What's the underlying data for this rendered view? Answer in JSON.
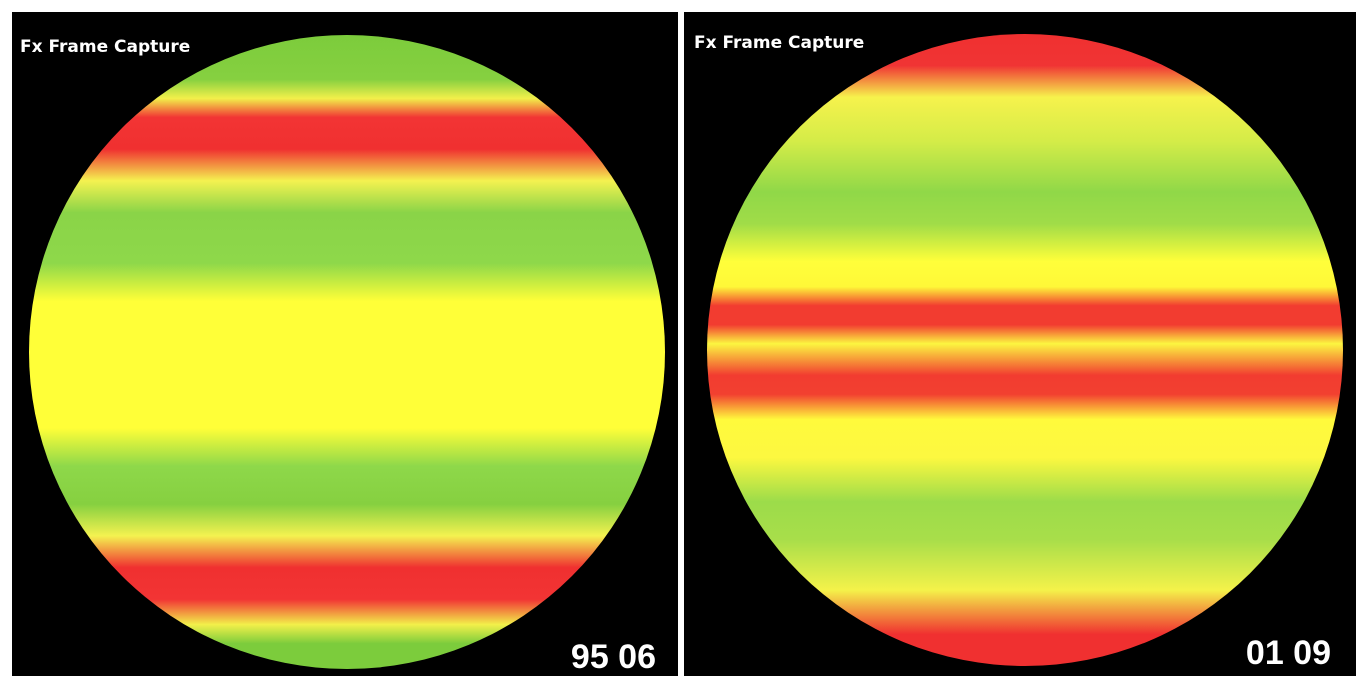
{
  "panels": [
    {
      "label": "Fx Frame Capture",
      "code": "95 06"
    },
    {
      "label": "Fx Frame Capture",
      "code": "01 09"
    }
  ]
}
